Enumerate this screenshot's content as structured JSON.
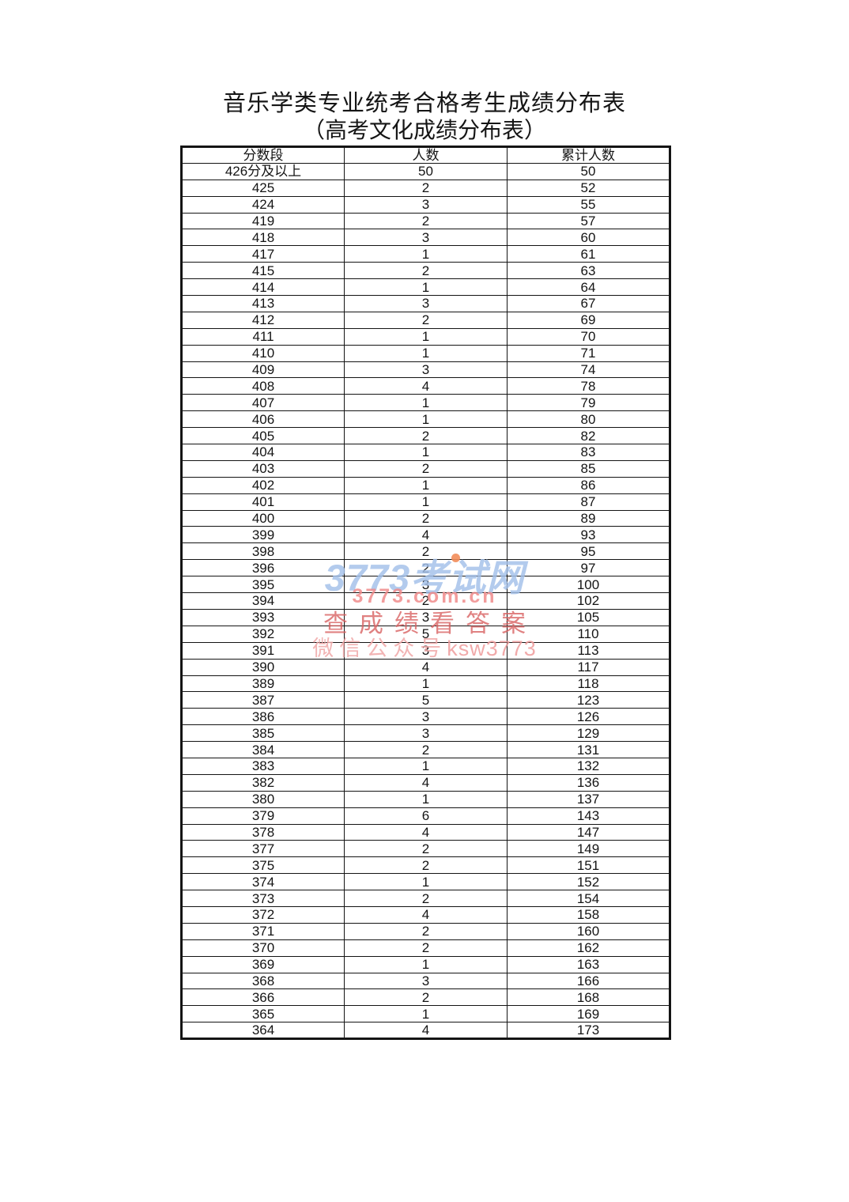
{
  "title": {
    "line1": "音乐学类专业统考合格考生成绩分布表",
    "line2": "（高考文化成绩分布表）"
  },
  "table": {
    "headers": [
      "分数段",
      "人数",
      "累计人数"
    ],
    "rows": [
      [
        "426分及以上",
        "50",
        "50"
      ],
      [
        "425",
        "2",
        "52"
      ],
      [
        "424",
        "3",
        "55"
      ],
      [
        "419",
        "2",
        "57"
      ],
      [
        "418",
        "3",
        "60"
      ],
      [
        "417",
        "1",
        "61"
      ],
      [
        "415",
        "2",
        "63"
      ],
      [
        "414",
        "1",
        "64"
      ],
      [
        "413",
        "3",
        "67"
      ],
      [
        "412",
        "2",
        "69"
      ],
      [
        "411",
        "1",
        "70"
      ],
      [
        "410",
        "1",
        "71"
      ],
      [
        "409",
        "3",
        "74"
      ],
      [
        "408",
        "4",
        "78"
      ],
      [
        "407",
        "1",
        "79"
      ],
      [
        "406",
        "1",
        "80"
      ],
      [
        "405",
        "2",
        "82"
      ],
      [
        "404",
        "1",
        "83"
      ],
      [
        "403",
        "2",
        "85"
      ],
      [
        "402",
        "1",
        "86"
      ],
      [
        "401",
        "1",
        "87"
      ],
      [
        "400",
        "2",
        "89"
      ],
      [
        "399",
        "4",
        "93"
      ],
      [
        "398",
        "2",
        "95"
      ],
      [
        "396",
        "2",
        "97"
      ],
      [
        "395",
        "3",
        "100"
      ],
      [
        "394",
        "2",
        "102"
      ],
      [
        "393",
        "3",
        "105"
      ],
      [
        "392",
        "5",
        "110"
      ],
      [
        "391",
        "3",
        "113"
      ],
      [
        "390",
        "4",
        "117"
      ],
      [
        "389",
        "1",
        "118"
      ],
      [
        "387",
        "5",
        "123"
      ],
      [
        "386",
        "3",
        "126"
      ],
      [
        "385",
        "3",
        "129"
      ],
      [
        "384",
        "2",
        "131"
      ],
      [
        "383",
        "1",
        "132"
      ],
      [
        "382",
        "4",
        "136"
      ],
      [
        "380",
        "1",
        "137"
      ],
      [
        "379",
        "6",
        "143"
      ],
      [
        "378",
        "4",
        "147"
      ],
      [
        "377",
        "2",
        "149"
      ],
      [
        "375",
        "2",
        "151"
      ],
      [
        "374",
        "1",
        "152"
      ],
      [
        "373",
        "2",
        "154"
      ],
      [
        "372",
        "4",
        "158"
      ],
      [
        "371",
        "2",
        "160"
      ],
      [
        "370",
        "2",
        "162"
      ],
      [
        "369",
        "1",
        "163"
      ],
      [
        "368",
        "3",
        "166"
      ],
      [
        "366",
        "2",
        "168"
      ],
      [
        "365",
        "1",
        "169"
      ],
      [
        "364",
        "4",
        "173"
      ]
    ]
  },
  "watermark": {
    "line1": "3773考试网",
    "line2": "3773.com.cn",
    "line3": "查成绩看答案",
    "line4_cn": "微信公众号",
    "line4_en": "ksw3773",
    "colors": {
      "blue": "#a3c0ea",
      "orange_dot": "#f28d5a",
      "pink": "#f08b8b",
      "red": "#d96262",
      "light_pink": "#f0a8a8"
    }
  }
}
